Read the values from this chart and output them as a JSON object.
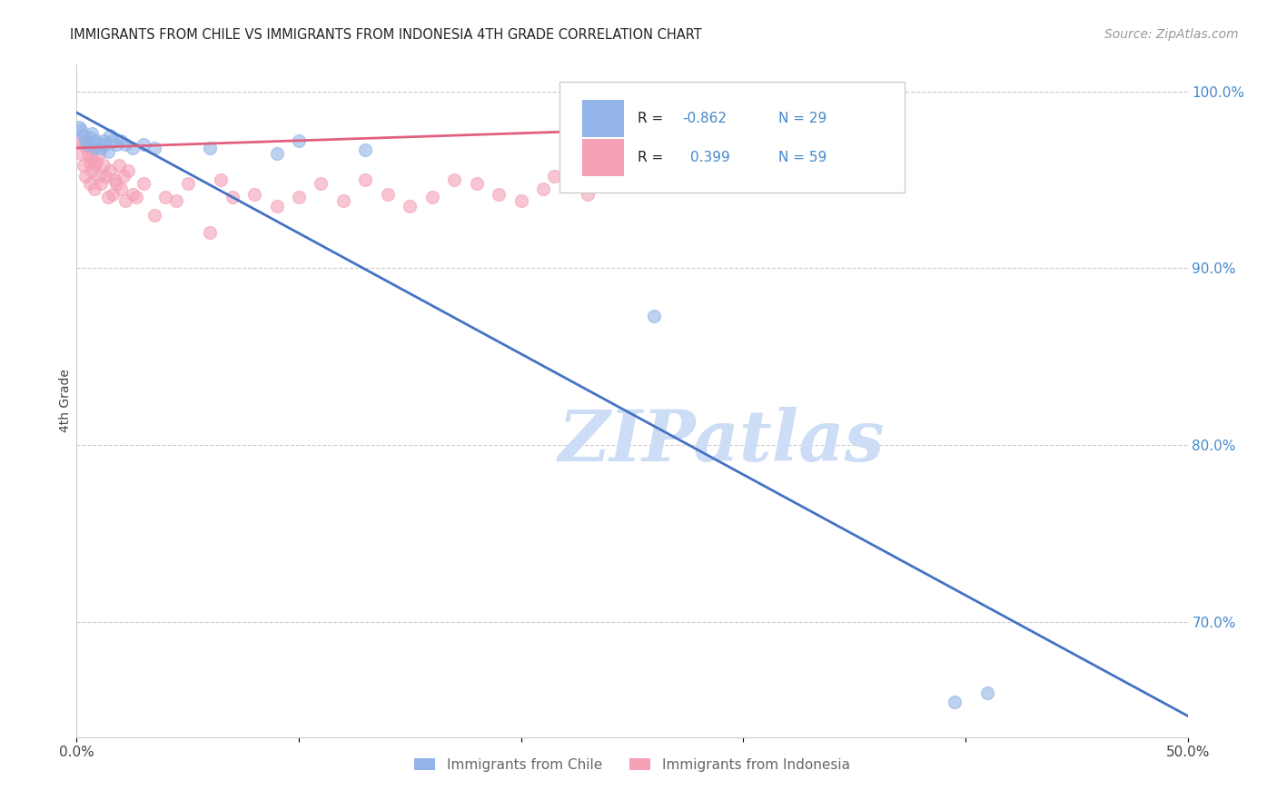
{
  "title": "IMMIGRANTS FROM CHILE VS IMMIGRANTS FROM INDONESIA 4TH GRADE CORRELATION CHART",
  "source": "Source: ZipAtlas.com",
  "ylabel": "4th Grade",
  "xlim": [
    0.0,
    0.5
  ],
  "ylim": [
    0.635,
    1.015
  ],
  "ytick_right": [
    0.7,
    0.8,
    0.9,
    1.0
  ],
  "ytick_right_labels": [
    "70.0%",
    "80.0%",
    "90.0%",
    "100.0%"
  ],
  "legend_label_chile": "Immigrants from Chile",
  "legend_label_indonesia": "Immigrants from Indonesia",
  "chile_color": "#92b4e8",
  "indonesia_color": "#f4a0b5",
  "chile_line_color": "#4472c4",
  "indonesia_line_color": "#e06080",
  "watermark": "ZIPatlas",
  "watermark_color": "#ccddf5",
  "chile_scatter_x": [
    0.001,
    0.002,
    0.003,
    0.004,
    0.005,
    0.006,
    0.007,
    0.008,
    0.009,
    0.01,
    0.011,
    0.012,
    0.013,
    0.014,
    0.015,
    0.016,
    0.018,
    0.02,
    0.022,
    0.025,
    0.03,
    0.035,
    0.06,
    0.09,
    0.1,
    0.13,
    0.26,
    0.395,
    0.41
  ],
  "chile_scatter_y": [
    0.98,
    0.978,
    0.975,
    0.972,
    0.97,
    0.974,
    0.976,
    0.968,
    0.972,
    0.97,
    0.968,
    0.972,
    0.97,
    0.966,
    0.975,
    0.972,
    0.97,
    0.972,
    0.97,
    0.968,
    0.97,
    0.968,
    0.968,
    0.965,
    0.972,
    0.967,
    0.873,
    0.655,
    0.66
  ],
  "indonesia_scatter_x": [
    0.001,
    0.002,
    0.003,
    0.003,
    0.004,
    0.005,
    0.005,
    0.006,
    0.006,
    0.007,
    0.007,
    0.008,
    0.008,
    0.009,
    0.01,
    0.01,
    0.011,
    0.012,
    0.013,
    0.014,
    0.015,
    0.016,
    0.017,
    0.018,
    0.019,
    0.02,
    0.021,
    0.022,
    0.023,
    0.025,
    0.027,
    0.03,
    0.035,
    0.04,
    0.045,
    0.05,
    0.06,
    0.065,
    0.07,
    0.08,
    0.09,
    0.1,
    0.11,
    0.12,
    0.13,
    0.14,
    0.15,
    0.16,
    0.17,
    0.18,
    0.19,
    0.2,
    0.21,
    0.215,
    0.22,
    0.225,
    0.23,
    0.235,
    0.24
  ],
  "indonesia_scatter_y": [
    0.972,
    0.965,
    0.958,
    0.97,
    0.952,
    0.965,
    0.968,
    0.948,
    0.96,
    0.955,
    0.962,
    0.958,
    0.945,
    0.96,
    0.952,
    0.965,
    0.948,
    0.958,
    0.952,
    0.94,
    0.955,
    0.942,
    0.95,
    0.948,
    0.958,
    0.945,
    0.952,
    0.938,
    0.955,
    0.942,
    0.94,
    0.948,
    0.93,
    0.94,
    0.938,
    0.948,
    0.92,
    0.95,
    0.94,
    0.942,
    0.935,
    0.94,
    0.948,
    0.938,
    0.95,
    0.942,
    0.935,
    0.94,
    0.95,
    0.948,
    0.942,
    0.938,
    0.945,
    0.952,
    0.948,
    0.958,
    0.942,
    0.948,
    0.955
  ],
  "chile_line_x0": 0.0,
  "chile_line_y0": 0.988,
  "chile_line_x1": 0.5,
  "chile_line_y1": 0.647,
  "indonesia_line_x0": 0.0,
  "indonesia_line_y0": 0.968,
  "indonesia_line_x1": 0.24,
  "indonesia_line_y1": 0.978
}
